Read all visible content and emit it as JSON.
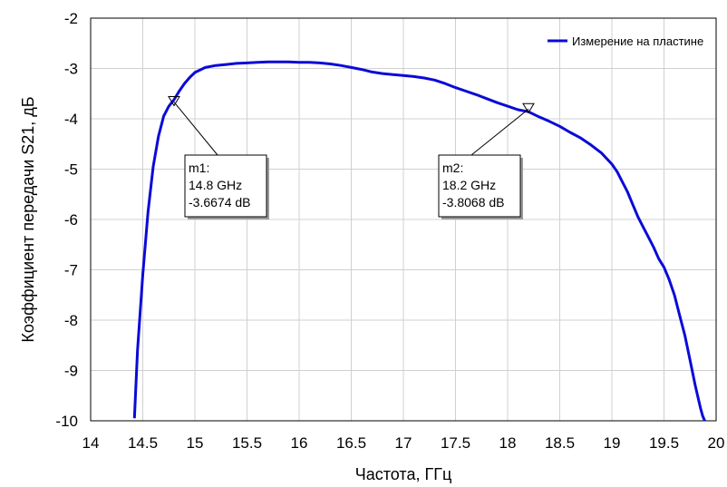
{
  "chart_data": {
    "type": "line",
    "xlabel": "Частота, ГГц",
    "ylabel": "Коэффициент передачи S21, дБ",
    "xlim": [
      14,
      20
    ],
    "ylim": [
      -10,
      -2
    ],
    "xticks": [
      "14",
      "14.5",
      "15",
      "15.5",
      "16",
      "16.5",
      "17",
      "17.5",
      "18",
      "18.5",
      "19",
      "19.5",
      "20"
    ],
    "yticks": [
      "-2",
      "-3",
      "-4",
      "-5",
      "-6",
      "-7",
      "-8",
      "-9",
      "-10"
    ],
    "grid": true,
    "legend_position": "top-right",
    "series": [
      {
        "name": "Измерение на пластине",
        "color": "#0a0ad8",
        "x": [
          14.42,
          14.45,
          14.5,
          14.55,
          14.6,
          14.65,
          14.7,
          14.75,
          14.8,
          14.85,
          14.9,
          14.95,
          15.0,
          15.1,
          15.2,
          15.3,
          15.4,
          15.5,
          15.6,
          15.7,
          15.8,
          15.9,
          16.0,
          16.1,
          16.2,
          16.3,
          16.4,
          16.5,
          16.6,
          16.7,
          16.8,
          16.9,
          17.0,
          17.1,
          17.2,
          17.3,
          17.4,
          17.5,
          17.6,
          17.7,
          17.8,
          17.9,
          18.0,
          18.1,
          18.2,
          18.3,
          18.4,
          18.5,
          18.6,
          18.7,
          18.8,
          18.9,
          19.0,
          19.05,
          19.1,
          19.15,
          19.2,
          19.25,
          19.3,
          19.35,
          19.4,
          19.45,
          19.5,
          19.55,
          19.6,
          19.65,
          19.7,
          19.75,
          19.8,
          19.85,
          19.87,
          19.89
        ],
        "y": [
          -9.95,
          -8.6,
          -7.1,
          -5.85,
          -4.95,
          -4.35,
          -3.95,
          -3.75,
          -3.62,
          -3.45,
          -3.3,
          -3.18,
          -3.08,
          -2.98,
          -2.94,
          -2.92,
          -2.9,
          -2.89,
          -2.88,
          -2.87,
          -2.87,
          -2.87,
          -2.88,
          -2.88,
          -2.89,
          -2.91,
          -2.94,
          -2.98,
          -3.02,
          -3.07,
          -3.1,
          -3.12,
          -3.14,
          -3.16,
          -3.19,
          -3.23,
          -3.3,
          -3.38,
          -3.45,
          -3.52,
          -3.6,
          -3.68,
          -3.75,
          -3.82,
          -3.86,
          -3.96,
          -4.05,
          -4.15,
          -4.27,
          -4.38,
          -4.52,
          -4.68,
          -4.9,
          -5.05,
          -5.25,
          -5.45,
          -5.7,
          -5.95,
          -6.15,
          -6.35,
          -6.55,
          -6.78,
          -6.95,
          -7.2,
          -7.5,
          -7.9,
          -8.3,
          -8.8,
          -9.3,
          -9.75,
          -9.9,
          -10.0
        ]
      }
    ],
    "markers": [
      {
        "id": "m1",
        "x": 14.8,
        "y": -3.6674,
        "lines": [
          "m1:",
          "14.8 GHz",
          "-3.6674 dB"
        ]
      },
      {
        "id": "m2",
        "x": 18.2,
        "y": -3.8068,
        "lines": [
          "m2:",
          "18.2 GHz",
          "-3.8068 dB"
        ]
      }
    ]
  }
}
